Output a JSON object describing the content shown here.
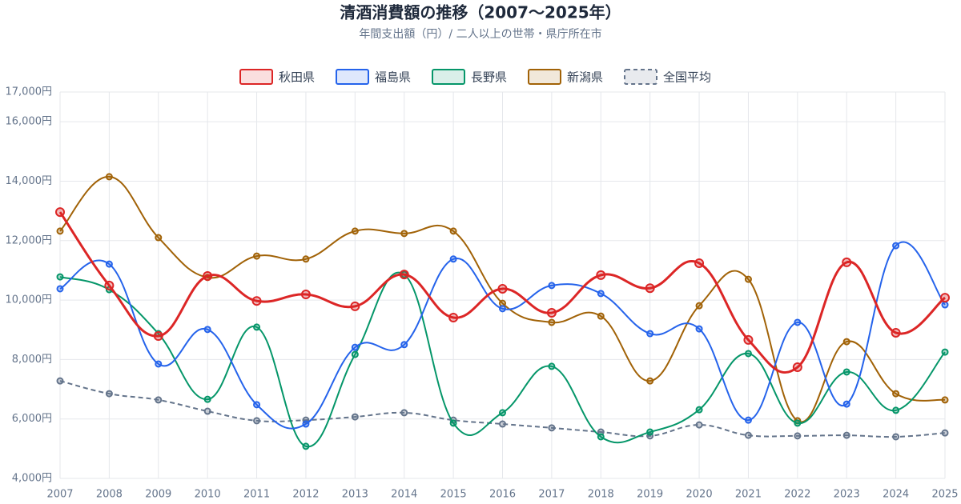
{
  "chart_data": {
    "type": "line",
    "title": "清酒消費額の推移（2007〜2025年）",
    "subtitle": "年間支出額（円）/ 二人以上の世帯・県庁所在市",
    "x": [
      2007,
      2008,
      2009,
      2010,
      2011,
      2012,
      2013,
      2014,
      2015,
      2016,
      2017,
      2018,
      2019,
      2020,
      2021,
      2022,
      2023,
      2024,
      2025
    ],
    "xlim": [
      2007,
      2025
    ],
    "xticks": [
      2007,
      2008,
      2009,
      2010,
      2011,
      2012,
      2013,
      2014,
      2015,
      2016,
      2017,
      2018,
      2019,
      2020,
      2021,
      2022,
      2023,
      2024,
      2025
    ],
    "ylim": [
      4000,
      17000
    ],
    "yticks": [
      {
        "value": 4000,
        "label": "4,000円"
      },
      {
        "value": 6000,
        "label": "6,000円"
      },
      {
        "value": 8000,
        "label": "8,000円"
      },
      {
        "value": 10000,
        "label": "10,000円"
      },
      {
        "value": 12000,
        "label": "12,000円"
      },
      {
        "value": 14000,
        "label": "14,000円"
      },
      {
        "value": 16000,
        "label": "16,000円"
      },
      {
        "value": 17000,
        "label": "17,000円"
      }
    ],
    "grid": true,
    "legend": "top",
    "series": [
      {
        "name": "秋田県",
        "color": "#dc2626",
        "values": [
          12960,
          10490,
          8790,
          10810,
          9970,
          10190,
          9790,
          10860,
          9410,
          10380,
          9570,
          10840,
          10400,
          11240,
          8660,
          7740,
          11270,
          8900,
          10080
        ]
      },
      {
        "name": "福島県",
        "color": "#2563eb",
        "values": [
          10380,
          11210,
          7850,
          9010,
          6480,
          5830,
          8410,
          8500,
          11380,
          9710,
          10490,
          10220,
          8870,
          9030,
          5960,
          9250,
          6500,
          11830,
          9840
        ]
      },
      {
        "name": "長野県",
        "color": "#059669",
        "values": [
          10780,
          10350,
          8870,
          6660,
          9090,
          5080,
          8170,
          10860,
          5860,
          6210,
          7770,
          5400,
          5560,
          6310,
          8200,
          5860,
          7580,
          6290,
          8250
        ]
      },
      {
        "name": "新潟県",
        "color": "#a16207",
        "values": [
          12320,
          14150,
          12100,
          10760,
          11480,
          11380,
          12320,
          12240,
          12320,
          9890,
          9250,
          9460,
          7280,
          9810,
          10700,
          5940,
          8600,
          6850,
          6640
        ]
      },
      {
        "name": "全国平均",
        "color": "#64748b",
        "dashed": true,
        "values": [
          7280,
          6850,
          6640,
          6260,
          5940,
          5960,
          6070,
          6210,
          5960,
          5830,
          5700,
          5560,
          5430,
          5800,
          5450,
          5430,
          5450,
          5400,
          5530
        ]
      }
    ]
  }
}
